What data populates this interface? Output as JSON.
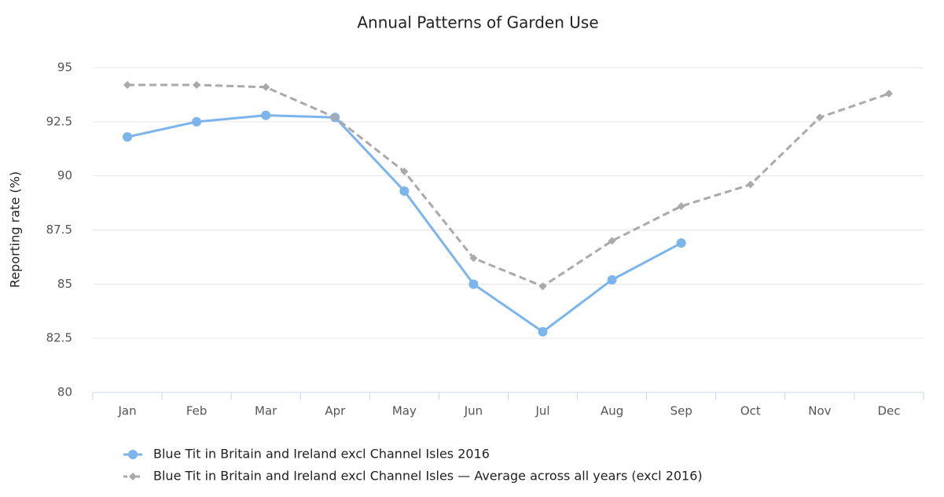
{
  "chart_data": {
    "type": "line",
    "title": "Annual Patterns of Garden Use",
    "y_label": "Reporting rate (%)",
    "categories": [
      "Jan",
      "Feb",
      "Mar",
      "Apr",
      "May",
      "Jun",
      "Jul",
      "Aug",
      "Sep",
      "Oct",
      "Nov",
      "Dec"
    ],
    "series": [
      {
        "name": "Blue Tit in Britain and Ireland excl Channel Isles 2016",
        "color": "#7cb5ec",
        "marker": "circle",
        "dashed": false,
        "values": [
          91.8,
          92.5,
          92.8,
          92.7,
          89.3,
          85.0,
          82.8,
          85.2,
          86.9,
          null,
          null,
          null
        ]
      },
      {
        "name": "Blue Tit in Britain and Ireland excl Channel Isles — Average across all years (excl 2016)",
        "color": "#aaaaaa",
        "marker": "diamond",
        "dashed": true,
        "values": [
          94.2,
          94.2,
          94.1,
          92.7,
          90.2,
          86.2,
          84.9,
          87.0,
          88.6,
          89.6,
          92.7,
          93.8
        ]
      }
    ],
    "ylim": [
      80,
      95
    ],
    "yticks": [
      80,
      82.5,
      85,
      87.5,
      90,
      92.5,
      95
    ],
    "grid": true,
    "legend": "bottom"
  }
}
